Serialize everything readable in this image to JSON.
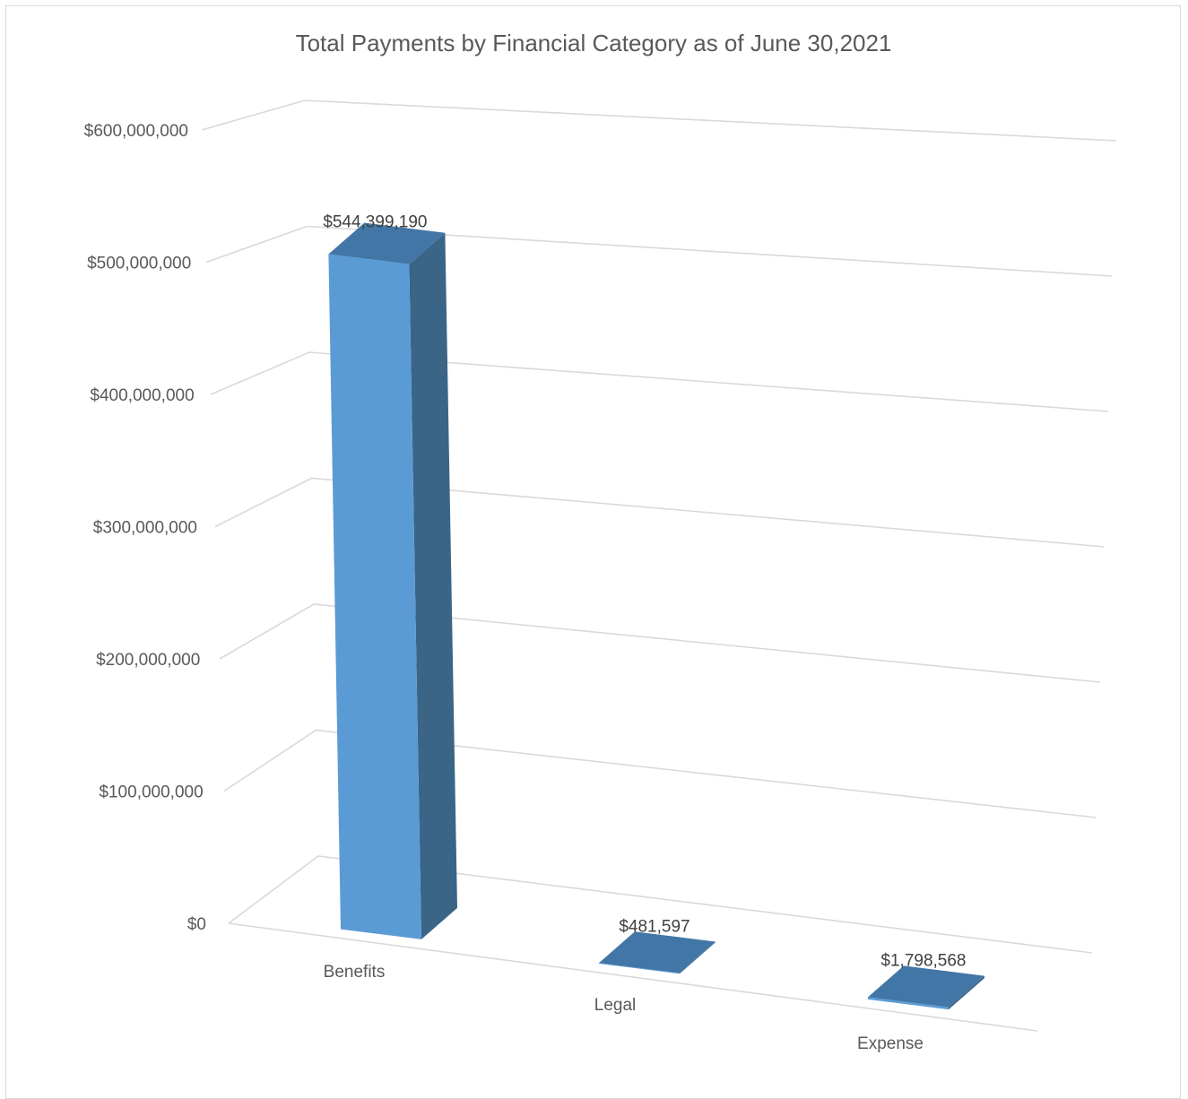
{
  "chart_data": {
    "type": "bar",
    "title": "Total Payments by Financial Category as of June 30,2021",
    "xlabel": "",
    "ylabel": "",
    "categories": [
      "Benefits",
      "Legal",
      "Expense"
    ],
    "values": [
      544399190,
      481597,
      1798568
    ],
    "data_labels": [
      "$544,399,190",
      "$481,597",
      "$1,798,568"
    ],
    "yticks": [
      "$0",
      "$100,000,000",
      "$200,000,000",
      "$300,000,000",
      "$400,000,000",
      "$500,000,000",
      "$600,000,000"
    ],
    "ylim": [
      0,
      600000000
    ],
    "grid": true,
    "legend": "none",
    "colors": {
      "bar_front": "#5b9bd5",
      "bar_side": "#3a6587",
      "bar_top": "#4276a6",
      "gridline": "#d9d9d9",
      "text": "#595959"
    }
  }
}
